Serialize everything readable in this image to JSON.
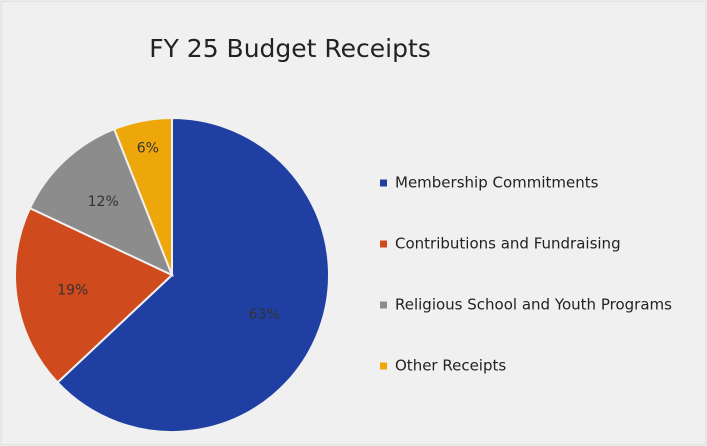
{
  "chart_data": {
    "type": "pie",
    "title": "FY 25 Budget Receipts",
    "categories": [
      "Membership Commitments",
      "Contributions and Fundraising",
      "Religious School and Youth Programs",
      "Other Receipts"
    ],
    "values": [
      63,
      19,
      12,
      6
    ],
    "value_labels": [
      "63%",
      "19%",
      "12%",
      "6%"
    ],
    "colors": [
      "#1f3fa3",
      "#cf4a1c",
      "#8c8c8c",
      "#eea70b"
    ],
    "legend": "right"
  }
}
